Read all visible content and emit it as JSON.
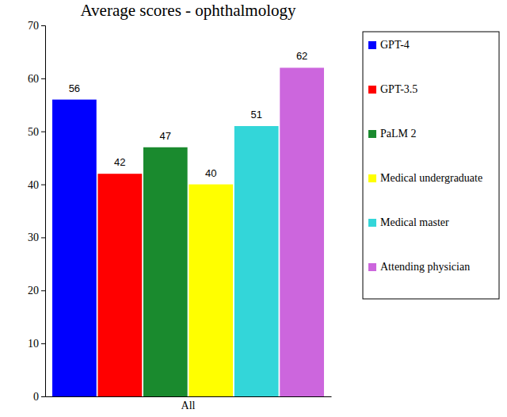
{
  "chart_data": {
    "type": "bar",
    "title": "Average scores - ophthalmology",
    "categories": [
      "All"
    ],
    "series": [
      {
        "name": "GPT-4",
        "color": "#0000ff",
        "values": [
          56
        ]
      },
      {
        "name": "GPT-3.5",
        "color": "#ff0000",
        "values": [
          42
        ]
      },
      {
        "name": "PaLM 2",
        "color": "#1a8a2e",
        "values": [
          47
        ]
      },
      {
        "name": "Medical undergraduate",
        "color": "#ffff00",
        "values": [
          40
        ]
      },
      {
        "name": "Medical master",
        "color": "#33d6d9",
        "values": [
          51
        ]
      },
      {
        "name": "Attending physician",
        "color": "#cc66dd",
        "values": [
          62
        ]
      }
    ],
    "ylim": [
      0,
      70
    ],
    "yticks": [
      0,
      10,
      20,
      30,
      40,
      50,
      60,
      70
    ],
    "grid": false,
    "data_labels": true,
    "legend": "right"
  }
}
